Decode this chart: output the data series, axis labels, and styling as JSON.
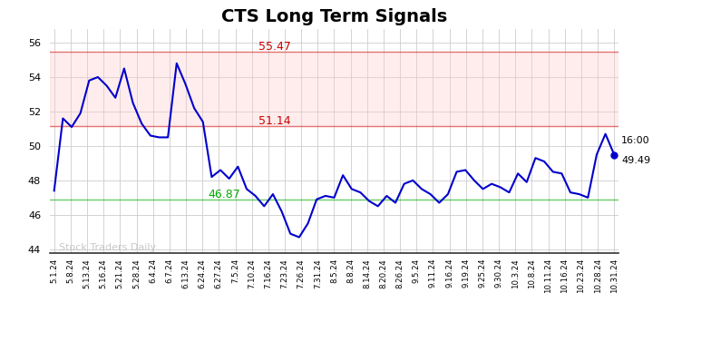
{
  "title": "CTS Long Term Signals",
  "watermark": "Stock Traders Daily",
  "hline_upper": 55.47,
  "hline_upper_color": "#cc0000",
  "hline_middle": 51.14,
  "hline_middle_color": "#cc0000",
  "hline_lower": 46.87,
  "hline_lower_color": "#00aa00",
  "last_value": 49.49,
  "line_color": "#0000cc",
  "dot_color": "#0000cc",
  "ylim": [
    43.8,
    56.8
  ],
  "yticks": [
    44,
    46,
    48,
    50,
    52,
    54,
    56
  ],
  "xtick_labels": [
    "5.1.24",
    "5.8.24",
    "5.13.24",
    "5.16.24",
    "5.21.24",
    "5.28.24",
    "6.4.24",
    "6.7.24",
    "6.13.24",
    "6.24.24",
    "6.27.24",
    "7.5.24",
    "7.10.24",
    "7.16.24",
    "7.23.24",
    "7.26.24",
    "7.31.24",
    "8.5.24",
    "8.8.24",
    "8.14.24",
    "8.20.24",
    "8.26.24",
    "9.5.24",
    "9.11.24",
    "9.16.24",
    "9.19.24",
    "9.25.24",
    "9.30.24",
    "10.3.24",
    "10.8.24",
    "10.11.24",
    "10.16.24",
    "10.23.24",
    "10.28.24",
    "10.31.24"
  ],
  "y_values": [
    47.4,
    51.6,
    51.1,
    51.9,
    53.8,
    54.0,
    53.5,
    52.8,
    54.5,
    52.5,
    51.3,
    50.6,
    50.5,
    50.5,
    54.8,
    53.6,
    52.2,
    51.4,
    48.2,
    48.6,
    48.1,
    48.8,
    47.5,
    47.1,
    46.5,
    47.2,
    46.2,
    44.9,
    44.7,
    45.5,
    46.9,
    47.1,
    47.0,
    48.3,
    47.5,
    47.3,
    46.8,
    46.5,
    47.1,
    46.7,
    47.8,
    48.0,
    47.5,
    47.2,
    46.7,
    47.2,
    48.5,
    48.6,
    48.0,
    47.5,
    47.8,
    47.6,
    47.3,
    48.4,
    47.9,
    49.3,
    49.1,
    48.5,
    48.4,
    47.3,
    47.2,
    47.0,
    49.5,
    50.7,
    49.49
  ],
  "background_color": "#ffffff",
  "grid_color": "#cccccc",
  "title_fontsize": 14
}
